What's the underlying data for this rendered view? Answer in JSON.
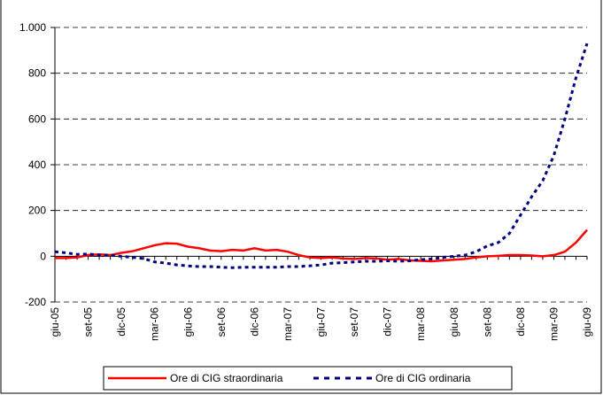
{
  "chart_data": {
    "type": "line",
    "categories": [
      "giu-05",
      null,
      null,
      "set-05",
      null,
      null,
      "dic-05",
      null,
      null,
      "mar-06",
      null,
      null,
      "giu-06",
      null,
      null,
      "set-06",
      null,
      null,
      "dic-06",
      null,
      null,
      "mar-07",
      null,
      null,
      "giu-07",
      null,
      null,
      "set-07",
      null,
      null,
      "dic-07",
      null,
      null,
      "mar-08",
      null,
      null,
      "giu-08",
      null,
      null,
      "set-08",
      null,
      null,
      "dic-08",
      null,
      null,
      "mar-09",
      null,
      null,
      "giu-09"
    ],
    "series": [
      {
        "name": "Ore di CIG straordinaria",
        "color": "#ff0000",
        "dash": false,
        "values": [
          -8,
          -8,
          -5,
          5,
          8,
          5,
          15,
          22,
          35,
          48,
          57,
          55,
          42,
          35,
          25,
          22,
          28,
          25,
          35,
          25,
          28,
          20,
          5,
          -5,
          -8,
          -5,
          -10,
          -12,
          -8,
          -10,
          -15,
          -12,
          -18,
          -20,
          -22,
          -18,
          -15,
          -12,
          -5,
          0,
          2,
          5,
          5,
          3,
          0,
          5,
          20,
          60,
          115
        ]
      },
      {
        "name": "Ore di CIG ordinaria",
        "color": "#000080",
        "dash": true,
        "values": [
          20,
          15,
          8,
          10,
          5,
          5,
          0,
          -5,
          -10,
          -25,
          -30,
          -38,
          -42,
          -45,
          -45,
          -48,
          -50,
          -48,
          -48,
          -48,
          -48,
          -45,
          -45,
          -42,
          -38,
          -30,
          -28,
          -25,
          -22,
          -22,
          -20,
          -22,
          -20,
          -15,
          -12,
          -5,
          0,
          5,
          20,
          45,
          60,
          100,
          180,
          260,
          330,
          440,
          600,
          780,
          930
        ]
      }
    ],
    "ylim": [
      -200,
      1000
    ],
    "yticks": [
      -200,
      0,
      200,
      400,
      600,
      800,
      {
        "value": 1000,
        "label": "1.000"
      }
    ],
    "grid": true
  }
}
